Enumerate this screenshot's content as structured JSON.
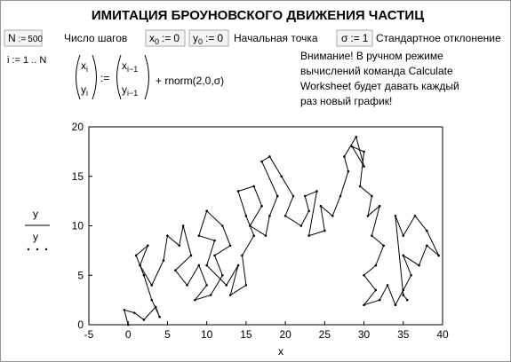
{
  "header": {
    "title": "ИМИТАЦИЯ БРОУНОВСКОГО ДВИЖЕНИЯ ЧАСТИЦ"
  },
  "definitions": {
    "N": {
      "name": "N",
      "op": ":=",
      "value": 500,
      "label": "Число шагов"
    },
    "x0": {
      "name": "x",
      "sub": "0",
      "op": ":=",
      "value": 0
    },
    "y0": {
      "name": "y",
      "sub": "0",
      "op": ":=",
      "value": 0,
      "label": "Начальная точка"
    },
    "sigma": {
      "name": "σ",
      "op": ":=",
      "value": 1,
      "label": "Стандартное отклонение"
    }
  },
  "range": {
    "text": "i := 1 .. N"
  },
  "formula": {
    "lhs": [
      {
        "name": "x",
        "sub": "i"
      },
      {
        "name": "y",
        "sub": "i"
      }
    ],
    "op": ":=",
    "rhs": [
      {
        "name": "x",
        "sub": "i−1"
      },
      {
        "name": "y",
        "sub": "i−1"
      }
    ],
    "tail": "+ rnorm(2,0,σ)"
  },
  "note": {
    "lines": [
      "Внимание! В ручном режиме",
      "вычислений команда Calculate",
      "Worksheet будет давать каждый",
      "раз новый график!"
    ]
  },
  "chart_data": {
    "type": "line",
    "xlabel": "x",
    "traces": [
      {
        "name": "y",
        "style": "line",
        "color": "#000000"
      },
      {
        "name": "y",
        "style": "points",
        "color": "#000000"
      }
    ],
    "x": [
      0,
      -0.5,
      0.8,
      2,
      3.5,
      4,
      3,
      2,
      1,
      2.5,
      1.5,
      3,
      4.5,
      5,
      6.5,
      7,
      8,
      6,
      7.5,
      9,
      10,
      8.5,
      10.5,
      12,
      11,
      13,
      12,
      10,
      9,
      11,
      10,
      12.5,
      14,
      13,
      15,
      14.5,
      16,
      15,
      14,
      16,
      17,
      15.5,
      17.5,
      18,
      19,
      17,
      18,
      19.5,
      21,
      20,
      22,
      23,
      22.5,
      24,
      23,
      25,
      24.5,
      26,
      27,
      28,
      27.5,
      29,
      30,
      28.5,
      30,
      29.5,
      31,
      30.5,
      32,
      31,
      32.5,
      31.5,
      30,
      31.5,
      30,
      32,
      33,
      34,
      35,
      36,
      35,
      37,
      38,
      39.5,
      38,
      36.5,
      35,
      34,
      35,
      35.5
    ],
    "y": [
      0,
      1.5,
      1.2,
      0.5,
      1.8,
      0.8,
      2.5,
      5,
      7,
      8,
      6,
      4,
      6.5,
      9,
      8,
      10,
      7,
      5.5,
      4,
      6,
      4,
      2.5,
      3,
      5,
      7,
      8,
      10,
      11.5,
      9,
      8.5,
      6,
      4,
      6,
      3,
      4,
      7,
      9,
      11,
      13.5,
      14,
      12,
      10,
      9,
      11,
      13,
      16.5,
      17,
      15,
      13,
      11,
      10,
      11.5,
      13,
      13.5,
      9,
      9.5,
      12,
      11,
      13,
      15.5,
      17,
      19,
      16,
      18,
      17.5,
      14,
      13,
      11,
      12,
      9,
      8,
      6,
      5,
      3.5,
      2,
      2.5,
      4,
      2,
      3.5,
      5,
      7,
      6,
      8,
      7,
      9.5,
      11,
      9,
      11,
      3,
      2.5
    ],
    "xlim": [
      -5,
      40
    ],
    "ylim": [
      0,
      20
    ],
    "xticks": [
      -5,
      0,
      5,
      10,
      15,
      20,
      25,
      30,
      35,
      40
    ],
    "yticks": [
      0,
      5,
      10,
      15,
      20
    ]
  }
}
